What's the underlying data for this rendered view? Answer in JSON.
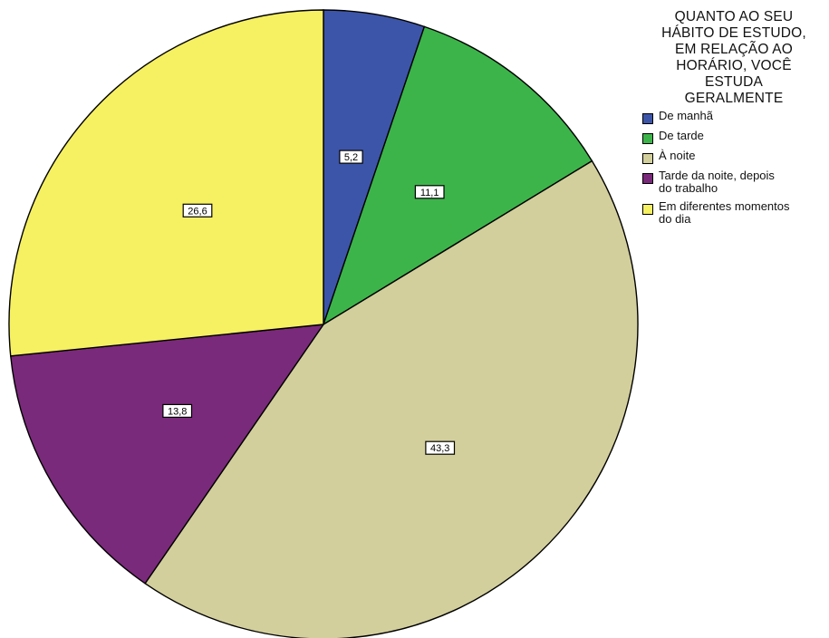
{
  "chart_data": {
    "type": "pie",
    "legend_title_lines": [
      "QUANTO AO SEU",
      "HÁBITO DE ESTUDO,",
      "EM RELAÇÃO AO",
      "HORÁRIO, VOCÊ",
      "ESTUDA",
      "GERALMENTE"
    ],
    "legend_position": "top-right",
    "start_angle_deg": 0,
    "direction": "clockwise",
    "slices": [
      {
        "label": "De manhã",
        "value": 5.2,
        "value_text": "5,2",
        "color": "#3d55a8"
      },
      {
        "label": "De tarde",
        "value": 11.1,
        "value_text": "11,1",
        "color": "#3cb44a"
      },
      {
        "label": "À noite",
        "value": 43.3,
        "value_text": "43,3",
        "color": "#d3cf9c"
      },
      {
        "label": "Tarde da noite, depois do trabalho",
        "value": 13.8,
        "value_text": "13,8",
        "color": "#7a2a7a"
      },
      {
        "label": "Em diferentes momentos do dia",
        "value": 26.6,
        "value_text": "26,6",
        "color": "#f6f063"
      }
    ]
  },
  "legend": {
    "items": [
      {
        "label_lines": [
          "De manhã"
        ]
      },
      {
        "label_lines": [
          "De tarde"
        ]
      },
      {
        "label_lines": [
          "À noite"
        ]
      },
      {
        "label_lines": [
          "Tarde da noite, depois",
          "do trabalho"
        ]
      },
      {
        "label_lines": [
          "Em diferentes momentos",
          "do dia"
        ]
      }
    ]
  }
}
